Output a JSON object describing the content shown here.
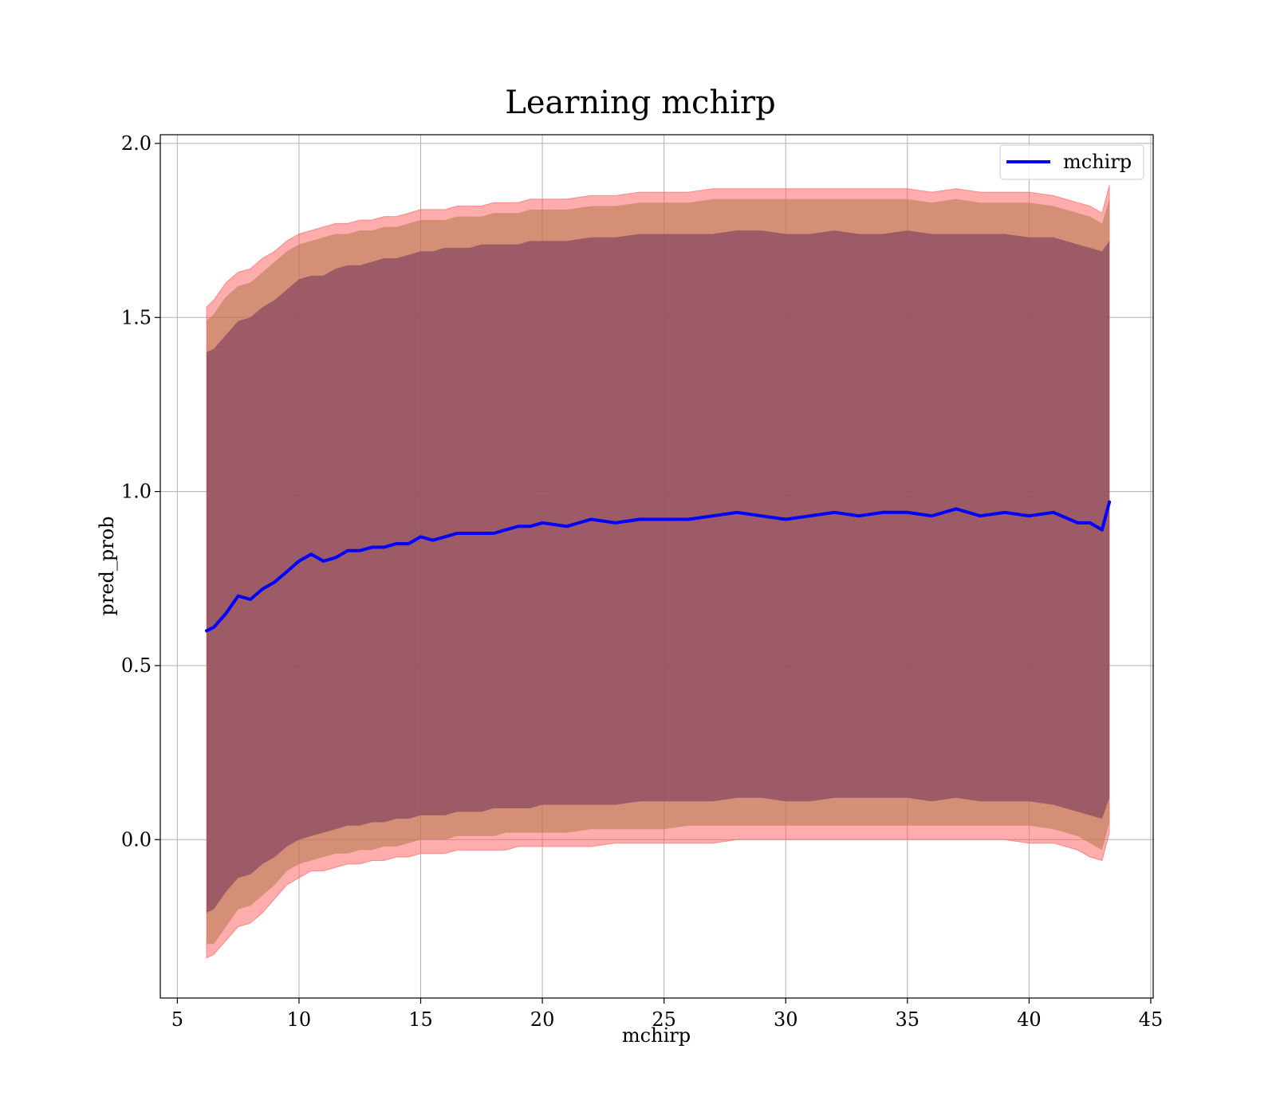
{
  "chart_data": {
    "type": "area",
    "title": "Learning mchirp",
    "xlabel": "mchirp",
    "ylabel": "pred_prob",
    "xlim": [
      4.3,
      45.1
    ],
    "ylim": [
      -0.455,
      2.025
    ],
    "xticks": [
      "5",
      "10",
      "15",
      "20",
      "25",
      "30",
      "35",
      "40",
      "45"
    ],
    "yticks": [
      "0.0",
      "0.5",
      "1.0",
      "1.5",
      "2.0"
    ],
    "grid": true,
    "legend": {
      "position": "top-right",
      "entries": [
        "mchirp"
      ]
    },
    "colors": {
      "line": "#0000ff",
      "outer_band": "#ff5a5a",
      "middle_band": "#b07a4a",
      "inner_band": "#8a4a62"
    },
    "series": [
      {
        "name": "mchirp",
        "x": [
          6.2,
          6.5,
          7.0,
          7.5,
          8.0,
          8.5,
          9.0,
          9.5,
          10.0,
          10.5,
          11.0,
          11.5,
          12.0,
          12.5,
          13.0,
          13.5,
          14.0,
          14.5,
          15.0,
          15.5,
          16.0,
          16.5,
          17.0,
          17.5,
          18.0,
          18.5,
          19.0,
          19.5,
          20.0,
          21.0,
          22.0,
          23.0,
          24.0,
          25.0,
          26.0,
          27.0,
          28.0,
          29.0,
          30.0,
          31.0,
          32.0,
          33.0,
          34.0,
          35.0,
          36.0,
          37.0,
          38.0,
          39.0,
          40.0,
          41.0,
          42.0,
          42.5,
          43.0,
          43.3
        ],
        "y": [
          0.6,
          0.61,
          0.65,
          0.7,
          0.69,
          0.72,
          0.74,
          0.77,
          0.8,
          0.82,
          0.8,
          0.81,
          0.83,
          0.83,
          0.84,
          0.84,
          0.85,
          0.85,
          0.87,
          0.86,
          0.87,
          0.88,
          0.88,
          0.88,
          0.88,
          0.89,
          0.9,
          0.9,
          0.91,
          0.9,
          0.92,
          0.91,
          0.92,
          0.92,
          0.92,
          0.93,
          0.94,
          0.93,
          0.92,
          0.93,
          0.94,
          0.93,
          0.94,
          0.94,
          0.93,
          0.95,
          0.93,
          0.94,
          0.93,
          0.94,
          0.91,
          0.91,
          0.89,
          0.97
        ]
      }
    ],
    "bands": {
      "x": [
        6.2,
        6.5,
        7.0,
        7.5,
        8.0,
        8.5,
        9.0,
        9.5,
        10.0,
        10.5,
        11.0,
        11.5,
        12.0,
        12.5,
        13.0,
        13.5,
        14.0,
        14.5,
        15.0,
        15.5,
        16.0,
        16.5,
        17.0,
        17.5,
        18.0,
        18.5,
        19.0,
        19.5,
        20.0,
        21.0,
        22.0,
        23.0,
        24.0,
        25.0,
        26.0,
        27.0,
        28.0,
        29.0,
        30.0,
        31.0,
        32.0,
        33.0,
        34.0,
        35.0,
        36.0,
        37.0,
        38.0,
        39.0,
        40.0,
        41.0,
        42.0,
        42.5,
        43.0,
        43.3
      ],
      "outer_upper": [
        1.53,
        1.55,
        1.6,
        1.63,
        1.64,
        1.67,
        1.69,
        1.72,
        1.74,
        1.75,
        1.76,
        1.77,
        1.77,
        1.78,
        1.78,
        1.79,
        1.79,
        1.8,
        1.81,
        1.81,
        1.81,
        1.82,
        1.82,
        1.82,
        1.83,
        1.83,
        1.83,
        1.84,
        1.84,
        1.84,
        1.85,
        1.85,
        1.86,
        1.86,
        1.86,
        1.87,
        1.87,
        1.87,
        1.87,
        1.87,
        1.87,
        1.87,
        1.87,
        1.87,
        1.86,
        1.87,
        1.86,
        1.86,
        1.86,
        1.85,
        1.83,
        1.82,
        1.8,
        1.88
      ],
      "middle_upper": [
        1.49,
        1.51,
        1.56,
        1.59,
        1.6,
        1.63,
        1.66,
        1.69,
        1.71,
        1.72,
        1.73,
        1.74,
        1.74,
        1.75,
        1.75,
        1.76,
        1.76,
        1.77,
        1.78,
        1.78,
        1.78,
        1.79,
        1.79,
        1.79,
        1.8,
        1.8,
        1.8,
        1.81,
        1.81,
        1.81,
        1.82,
        1.82,
        1.83,
        1.83,
        1.83,
        1.84,
        1.84,
        1.84,
        1.84,
        1.84,
        1.84,
        1.84,
        1.84,
        1.84,
        1.83,
        1.84,
        1.83,
        1.83,
        1.83,
        1.82,
        1.8,
        1.79,
        1.77,
        1.84
      ],
      "inner_upper": [
        1.4,
        1.41,
        1.45,
        1.49,
        1.5,
        1.53,
        1.55,
        1.58,
        1.61,
        1.62,
        1.62,
        1.64,
        1.65,
        1.65,
        1.66,
        1.67,
        1.67,
        1.68,
        1.69,
        1.69,
        1.7,
        1.7,
        1.7,
        1.71,
        1.71,
        1.71,
        1.71,
        1.72,
        1.72,
        1.72,
        1.73,
        1.73,
        1.74,
        1.74,
        1.74,
        1.74,
        1.75,
        1.75,
        1.74,
        1.74,
        1.75,
        1.74,
        1.74,
        1.75,
        1.74,
        1.74,
        1.74,
        1.74,
        1.73,
        1.73,
        1.71,
        1.7,
        1.69,
        1.72
      ],
      "inner_lower": [
        -0.21,
        -0.2,
        -0.15,
        -0.11,
        -0.1,
        -0.07,
        -0.05,
        -0.02,
        0.0,
        0.01,
        0.02,
        0.03,
        0.04,
        0.04,
        0.05,
        0.05,
        0.06,
        0.06,
        0.07,
        0.07,
        0.07,
        0.08,
        0.08,
        0.08,
        0.09,
        0.09,
        0.09,
        0.09,
        0.1,
        0.1,
        0.1,
        0.1,
        0.11,
        0.11,
        0.11,
        0.11,
        0.12,
        0.12,
        0.11,
        0.11,
        0.12,
        0.12,
        0.12,
        0.12,
        0.11,
        0.12,
        0.11,
        0.11,
        0.11,
        0.1,
        0.08,
        0.07,
        0.06,
        0.12
      ],
      "middle_lower": [
        -0.3,
        -0.3,
        -0.25,
        -0.2,
        -0.19,
        -0.16,
        -0.13,
        -0.09,
        -0.07,
        -0.06,
        -0.05,
        -0.04,
        -0.04,
        -0.03,
        -0.03,
        -0.02,
        -0.02,
        -0.01,
        0.0,
        0.0,
        0.0,
        0.01,
        0.01,
        0.01,
        0.01,
        0.02,
        0.02,
        0.02,
        0.02,
        0.02,
        0.03,
        0.03,
        0.03,
        0.03,
        0.04,
        0.04,
        0.04,
        0.04,
        0.04,
        0.04,
        0.04,
        0.04,
        0.04,
        0.04,
        0.04,
        0.04,
        0.04,
        0.04,
        0.04,
        0.03,
        0.01,
        -0.01,
        -0.03,
        0.05
      ],
      "outer_lower": [
        -0.34,
        -0.33,
        -0.29,
        -0.25,
        -0.24,
        -0.21,
        -0.17,
        -0.13,
        -0.11,
        -0.09,
        -0.09,
        -0.08,
        -0.07,
        -0.07,
        -0.06,
        -0.06,
        -0.05,
        -0.05,
        -0.04,
        -0.04,
        -0.04,
        -0.03,
        -0.03,
        -0.03,
        -0.03,
        -0.03,
        -0.02,
        -0.02,
        -0.02,
        -0.02,
        -0.02,
        -0.01,
        -0.01,
        -0.01,
        -0.01,
        -0.01,
        0.0,
        0.0,
        0.0,
        0.0,
        0.0,
        0.0,
        0.0,
        0.0,
        0.0,
        0.0,
        0.0,
        0.0,
        -0.01,
        -0.01,
        -0.03,
        -0.05,
        -0.06,
        0.02
      ]
    }
  }
}
